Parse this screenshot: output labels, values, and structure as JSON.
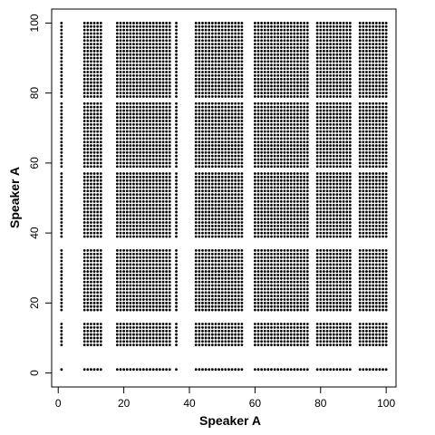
{
  "chart_data": {
    "type": "scatter",
    "title": "",
    "xlabel": "Speaker A",
    "ylabel": "Speaker A",
    "xlim": [
      -2,
      103
    ],
    "ylim": [
      -4,
      104
    ],
    "xticks": [
      0,
      20,
      40,
      60,
      80,
      100
    ],
    "yticks": [
      0,
      20,
      40,
      60,
      80,
      100
    ],
    "grid": false,
    "legend": "none",
    "marker_color": "#000000",
    "x_groups": [
      [
        1
      ],
      [
        8,
        9,
        10,
        11,
        12,
        13
      ],
      [
        18,
        19,
        20,
        21,
        22,
        23,
        24,
        25,
        26,
        27,
        28,
        29,
        30,
        31,
        32,
        33,
        34
      ],
      [
        36
      ],
      [
        42,
        43,
        44,
        45,
        46,
        47,
        48,
        49,
        50,
        51,
        52,
        53,
        54,
        55,
        56
      ],
      [
        60,
        61,
        62,
        63,
        64,
        65,
        66,
        67,
        68,
        69,
        70,
        71,
        72,
        73,
        74,
        75,
        76
      ],
      [
        79,
        80,
        81,
        82,
        83,
        84,
        85,
        86,
        87,
        88,
        89
      ],
      [
        92,
        93,
        94,
        95,
        96,
        97,
        98,
        99,
        100
      ]
    ],
    "y_groups": [
      [
        1
      ],
      [
        8,
        9,
        10,
        11,
        12,
        13,
        14
      ],
      [
        18,
        19,
        20,
        21,
        22,
        23,
        24,
        25,
        26,
        27,
        28,
        29,
        30,
        31,
        32,
        33,
        34,
        35
      ],
      [
        39,
        40,
        41,
        42,
        43,
        44,
        45,
        46,
        47,
        48,
        49,
        50,
        51,
        52,
        53,
        54,
        55,
        56,
        57
      ],
      [
        59,
        60,
        61,
        62,
        63,
        64,
        65,
        66,
        67,
        68,
        69,
        70,
        71,
        72,
        73,
        74,
        75,
        76,
        77
      ],
      [
        79,
        80,
        81,
        82,
        83,
        84,
        85,
        86,
        87,
        88,
        89,
        90,
        91,
        92,
        93,
        94,
        95,
        96,
        97,
        98,
        99,
        100
      ]
    ]
  }
}
